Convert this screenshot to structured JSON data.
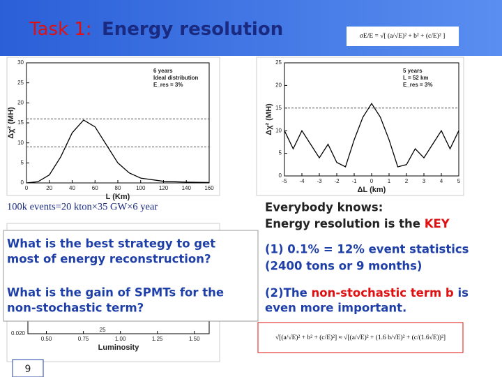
{
  "header": {
    "title_prefix": "Task 1:",
    "title": "Energy resolution",
    "formula": "σE/E = √[ (a/√E)² + b² + (c/E)² ]"
  },
  "plots": [
    {
      "xlim": [
        0,
        160
      ],
      "ylim": [
        0,
        30
      ],
      "xticks": [
        0,
        20,
        40,
        60,
        80,
        100,
        120,
        140,
        160
      ],
      "yticks": [
        0,
        5,
        10,
        15,
        20,
        25,
        30
      ],
      "xlabel": "L (Km)",
      "ylabel": "Δχ² (MH)",
      "legend": [
        "6 years",
        "Ideal distribution",
        "E_res = 3%"
      ],
      "x": [
        0,
        10,
        20,
        30,
        40,
        50,
        60,
        70,
        80,
        90,
        100,
        120,
        140,
        160
      ],
      "y": [
        0,
        0.3,
        2,
        6.5,
        12.5,
        15.7,
        14,
        9.5,
        5,
        2.5,
        1.2,
        0.4,
        0.2,
        0.1
      ],
      "dashed": [
        16,
        9
      ]
    },
    {
      "xlim": [
        -5,
        5
      ],
      "ylim": [
        0,
        25
      ],
      "xticks": [
        -5,
        -4,
        -3,
        -2,
        -1,
        0,
        1,
        2,
        3,
        4,
        5
      ],
      "yticks": [
        0,
        5,
        10,
        15,
        20,
        25
      ],
      "xlabel": "ΔL (km)",
      "ylabel": "Δχ² (MH)",
      "legend": [
        "5 years",
        "L = 52 km",
        "E_res = 3%"
      ],
      "x": [
        -5,
        -4.5,
        -4,
        -3.5,
        -3,
        -2.5,
        -2,
        -1.5,
        -1,
        -0.5,
        0,
        0.5,
        1,
        1.5,
        2,
        2.5,
        3,
        3.5,
        4,
        4.5,
        5
      ],
      "y": [
        10,
        6,
        10,
        7,
        4,
        7,
        3,
        2,
        8,
        13,
        16,
        13,
        8,
        2,
        2.5,
        6,
        4,
        7,
        10,
        6,
        10
      ],
      "dashed": [
        15
      ]
    },
    {
      "xlim": [
        0.375,
        1.6
      ],
      "ylim": [
        0.02,
        0.03
      ],
      "xticks": [
        {
          "value": 0.5,
          "label": "0.50"
        },
        0.75,
        {
          "value": 1,
          "label": "1.00"
        },
        1.25,
        {
          "value": 1.5,
          "label": "1.50"
        }
      ],
      "yticks": [
        {
          "value": 0.02,
          "label": "0.020"
        }
      ],
      "xlabel": "Luminosity",
      "note": "25"
    }
  ],
  "left": {
    "events": "100k events=20 kton×35 GW×6 year",
    "question1": [
      "What is the best strategy to get",
      "most of energy reconstruction?"
    ],
    "question2": [
      "What is the gain of SPMTs for the",
      "non-stochastic term?"
    ],
    "page_number": "9"
  },
  "right": {
    "line1": "Everybody knows:",
    "line2": "Energy resolution is the ",
    "key": "KEY",
    "point1": [
      "(1) 0.1% = 12% event statistics",
      "(2400 tons or 9 months)"
    ],
    "point2_a": "(2)The ",
    "point2_b": "non-stochastic term b",
    "point2_c": " is",
    "point2_d": "even more important.",
    "formula": "√[(a/√E)² + b² + (c/E)²] ≈ √[(a/√E)² + (1.6 b/√E)² + (c/(1.6√E))²]"
  }
}
